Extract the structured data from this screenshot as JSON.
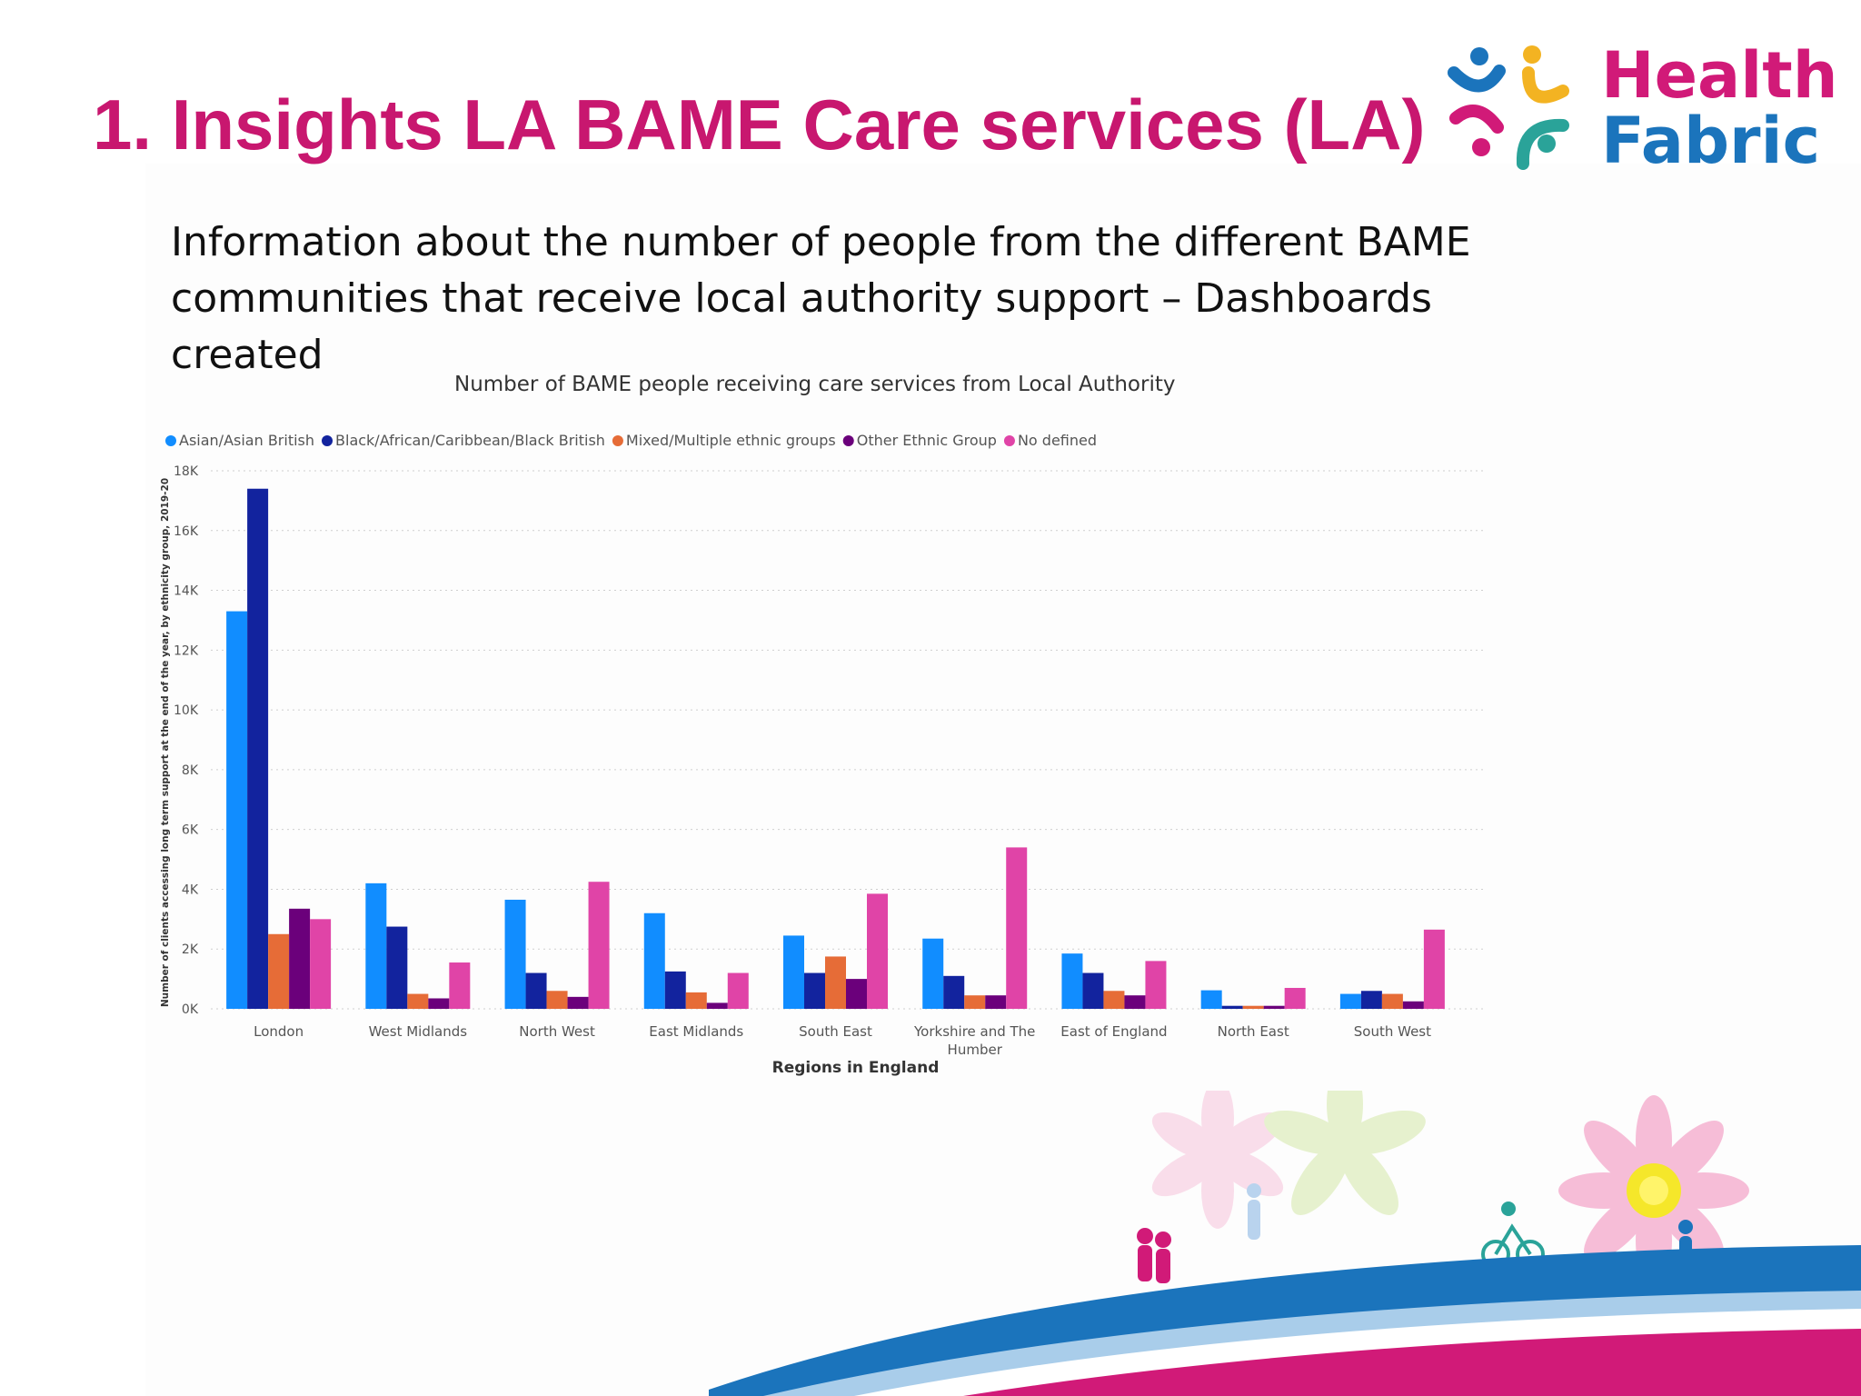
{
  "slide": {
    "title": "1. Insights LA BAME Care services (LA)",
    "intro": "Information about the number of people from the different BAME communities that receive local authority support – Dashboards created"
  },
  "logo": {
    "line1": "Health",
    "line2": "Fabric"
  },
  "colors": {
    "title": "#c8176f",
    "logo_health": "#d11a78",
    "logo_fabric": "#1b74bc"
  },
  "chart_data": {
    "type": "bar",
    "title": "Number of BAME people  receiving care services from Local Authority",
    "xlabel": "Regions in England",
    "ylabel": "Number of clients accessing long term support at the end of the year, by ethnicity group, 2019-20",
    "ylim": [
      0,
      18000
    ],
    "yticks": [
      "0K",
      "2K",
      "4K",
      "6K",
      "8K",
      "10K",
      "12K",
      "14K",
      "16K",
      "18K"
    ],
    "grid": true,
    "legend_position": "top-left",
    "categories": [
      "London",
      "West Midlands",
      "North West",
      "East Midlands",
      "South East",
      "Yorkshire and The Humber",
      "East of England",
      "North East",
      "South West"
    ],
    "series": [
      {
        "name": "Asian/Asian British",
        "color": "#118dff",
        "values": [
          13300,
          4200,
          3650,
          3200,
          2450,
          2350,
          1850,
          620,
          500
        ]
      },
      {
        "name": "Black/African/Caribbean/Black British",
        "color": "#12239e",
        "values": [
          17400,
          2750,
          1200,
          1250,
          1200,
          1100,
          1200,
          100,
          600
        ]
      },
      {
        "name": "Mixed/Multiple ethnic groups",
        "color": "#e66c37",
        "values": [
          2500,
          500,
          600,
          550,
          1750,
          450,
          600,
          100,
          500
        ]
      },
      {
        "name": "Other Ethnic Group",
        "color": "#6b007b",
        "values": [
          3350,
          350,
          400,
          200,
          1000,
          450,
          450,
          100,
          250
        ]
      },
      {
        "name": "No defined",
        "color": "#e044a7",
        "values": [
          3000,
          1550,
          4250,
          1200,
          3850,
          5400,
          1600,
          700,
          2650
        ]
      }
    ]
  }
}
